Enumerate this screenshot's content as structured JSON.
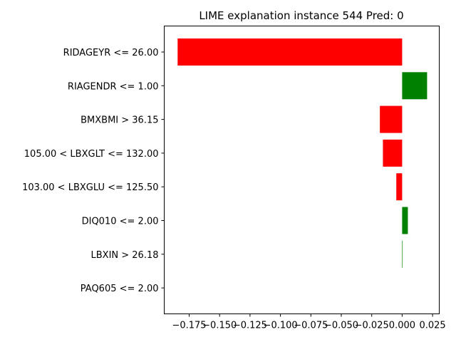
{
  "chart_data": {
    "type": "bar",
    "orientation": "horizontal",
    "title": "LIME explanation instance 544 Pred: 0",
    "xlabel": "",
    "ylabel": "",
    "categories": [
      "RIDAGEYR <= 26.00",
      "RIAGENDR <= 1.00",
      "BMXBMI > 36.15",
      "105.00 < LBXGLT <= 132.00",
      "103.00 < LBXGLU <= 125.50",
      "DIQ010 <= 2.00",
      "LBXIN > 26.18",
      "PAQ605 <= 2.00"
    ],
    "values": [
      -0.1845,
      0.0205,
      -0.0183,
      -0.0158,
      -0.0048,
      0.0047,
      0.0004,
      0.0
    ],
    "xlim": [
      -0.1955,
      0.0305
    ],
    "xticks": [
      -0.175,
      -0.15,
      -0.125,
      -0.1,
      -0.075,
      -0.05,
      -0.025,
      0.0,
      0.025
    ],
    "xtick_labels": [
      "−0.175",
      "−0.150",
      "−0.125",
      "−0.100",
      "−0.075",
      "−0.050",
      "−0.025",
      "0.000",
      "0.025"
    ],
    "colors": {
      "positive": "#008000",
      "negative": "#ff0000"
    },
    "grid": false
  }
}
